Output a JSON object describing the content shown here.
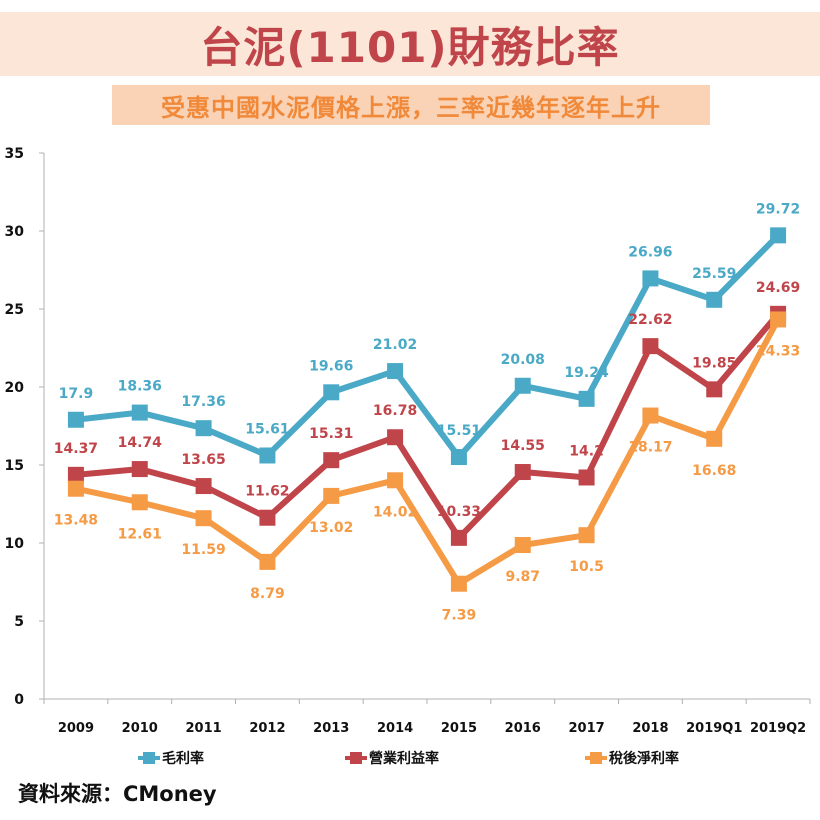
{
  "header": {
    "title": "台泥(1101)財務比率",
    "subtitle": "受惠中國水泥價格上漲，三率近幾年逐年上升"
  },
  "source": "資料來源：CMoney",
  "colors": {
    "gross_margin": "#4aa9c6",
    "operating_margin": "#c0454a",
    "net_margin": "#f59a45",
    "title": "#c0454a",
    "subtitle": "#f08a3a",
    "title_band": "#fbe6d8",
    "subtitle_band": "#fad3b6"
  },
  "chart_data": {
    "type": "line",
    "title": "台泥(1101)財務比率",
    "subtitle": "受惠中國水泥價格上漲，三率近幾年逐年上升",
    "xlabel": "",
    "ylabel": "",
    "ylim": [
      0,
      35
    ],
    "yticks": [
      0,
      5,
      10,
      15,
      20,
      25,
      30,
      35
    ],
    "grid": false,
    "legend_position": "bottom",
    "categories": [
      "2009",
      "2010",
      "2011",
      "2012",
      "2013",
      "2014",
      "2015",
      "2016",
      "2017",
      "2018",
      "2019Q1",
      "2019Q2"
    ],
    "series": [
      {
        "name": "毛利率",
        "color": "#4aa9c6",
        "label_pos": "above",
        "values": [
          17.9,
          18.36,
          17.36,
          15.61,
          19.66,
          21.02,
          15.51,
          20.08,
          19.24,
          26.96,
          25.59,
          29.72
        ],
        "labels": [
          "17.9",
          "18.36",
          "17.36",
          "15.61",
          "19.66",
          "21.02",
          "15.51",
          "20.08",
          "19.24",
          "26.96",
          "25.59",
          "29.72"
        ]
      },
      {
        "name": "營業利益率",
        "color": "#c0454a",
        "label_pos": "above",
        "values": [
          14.37,
          14.74,
          13.65,
          11.62,
          15.31,
          16.78,
          10.33,
          14.55,
          14.2,
          22.62,
          19.85,
          24.69
        ],
        "labels": [
          "14.37",
          "14.74",
          "13.65",
          "11.62",
          "15.31",
          "16.78",
          "10.33",
          "14.55",
          "14.2",
          "22.62",
          "19.85",
          "24.69"
        ]
      },
      {
        "name": "稅後淨利率",
        "color": "#f59a45",
        "label_pos": "below",
        "values": [
          13.48,
          12.61,
          11.59,
          8.79,
          13.02,
          14.02,
          7.39,
          9.87,
          10.5,
          18.17,
          16.68,
          24.33
        ],
        "labels": [
          "13.48",
          "12.61",
          "11.59",
          "8.79",
          "13.02",
          "14.02",
          "7.39",
          "9.87",
          "10.5",
          "18.17",
          "16.68",
          "24.33"
        ]
      }
    ]
  }
}
